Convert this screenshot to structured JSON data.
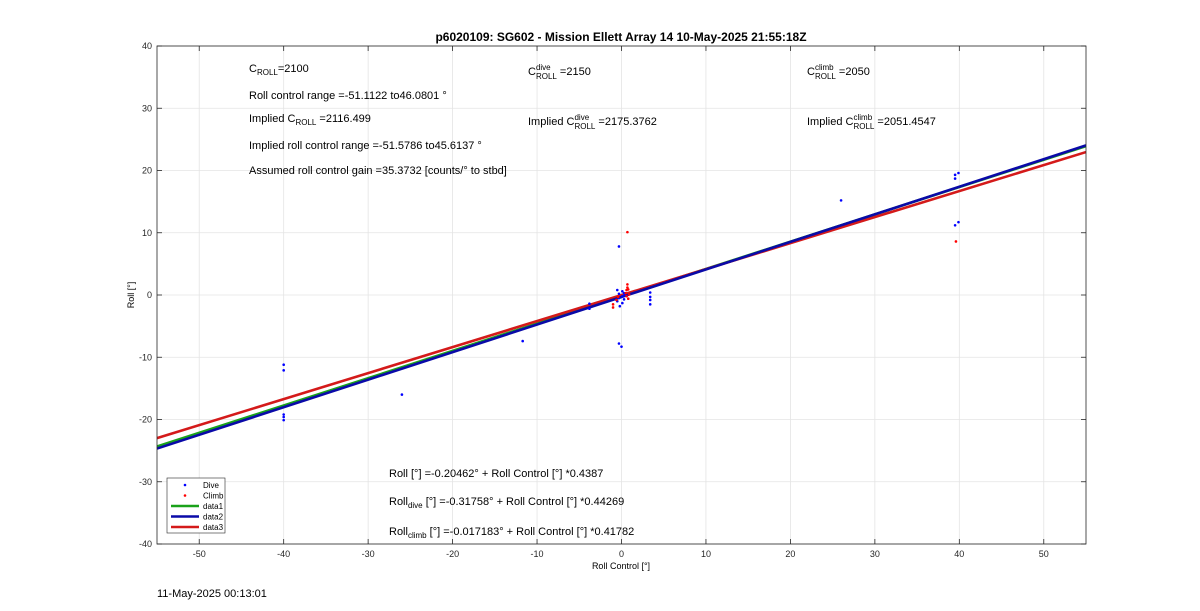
{
  "chart_data": {
    "type": "scatter",
    "title": "p6020109: SG602 - Mission Ellett Array 14 10-May-2025 21:55:18Z",
    "xlabel": "Roll Control [°]",
    "ylabel": "Roll [°]",
    "xlim": [
      -55,
      55
    ],
    "ylim": [
      -40,
      40
    ],
    "xticks": [
      -50,
      -40,
      -30,
      -20,
      -10,
      0,
      10,
      20,
      30,
      40,
      50
    ],
    "yticks": [
      -40,
      -30,
      -20,
      -10,
      0,
      10,
      20,
      30,
      40
    ],
    "grid": true,
    "legend_location": "bottom-left",
    "series": [
      {
        "name": "Dive",
        "kind": "points",
        "color": "#0000ff",
        "points": [
          [
            -40,
            -11.2
          ],
          [
            -40,
            -12.1
          ],
          [
            -40,
            -19.2
          ],
          [
            -40,
            -19.6
          ],
          [
            -40,
            -20.1
          ],
          [
            -26,
            -16.0
          ],
          [
            -11.7,
            -7.4
          ],
          [
            -3.8,
            -1.4
          ],
          [
            -3.8,
            -2.2
          ],
          [
            -0.5,
            0.8
          ],
          [
            -0.5,
            -1.0
          ],
          [
            -0.3,
            0.2
          ],
          [
            -0.3,
            -0.5
          ],
          [
            -0.2,
            -1.8
          ],
          [
            0.1,
            0.6
          ],
          [
            0.1,
            -0.2
          ],
          [
            0.1,
            -1.3
          ],
          [
            0.3,
            0.3
          ],
          [
            0.3,
            -0.7
          ],
          [
            0.4,
            0.0
          ],
          [
            -0.3,
            7.8
          ],
          [
            -0.3,
            -7.8
          ],
          [
            0,
            -8.3
          ],
          [
            3.4,
            0.4
          ],
          [
            3.4,
            -0.3
          ],
          [
            3.4,
            -0.8
          ],
          [
            3.4,
            -1.5
          ],
          [
            26,
            15.2
          ],
          [
            39.5,
            19.3
          ],
          [
            39.5,
            18.7
          ],
          [
            39.9,
            19.6
          ],
          [
            39.5,
            11.2
          ],
          [
            39.9,
            11.7
          ]
        ]
      },
      {
        "name": "Climb",
        "kind": "points",
        "color": "#ff0000",
        "points": [
          [
            -1,
            -1.5
          ],
          [
            -1,
            -2.0
          ],
          [
            -0.6,
            -0.8
          ],
          [
            -0.4,
            -0.3
          ],
          [
            0.5,
            0.3
          ],
          [
            0.6,
            0.8
          ],
          [
            0.7,
            1.2
          ],
          [
            0.7,
            1.7
          ],
          [
            0.8,
            0.9
          ],
          [
            0.8,
            -0.6
          ],
          [
            0.9,
            0.1
          ],
          [
            0.6,
            -0.2
          ],
          [
            0.7,
            10.1
          ],
          [
            39.6,
            8.6
          ]
        ]
      },
      {
        "name": "data1",
        "kind": "line",
        "color": "#1aa21a",
        "x": [
          -55,
          55
        ],
        "y": [
          -24.33,
          23.92
        ]
      },
      {
        "name": "data2",
        "kind": "line",
        "color": "#0a0aa8",
        "x": [
          -55,
          55
        ],
        "y": [
          -24.67,
          24.03
        ]
      },
      {
        "name": "data3",
        "kind": "line",
        "color": "#d41a1a",
        "x": [
          -55,
          55
        ],
        "y": [
          -22.99,
          22.96
        ]
      }
    ]
  },
  "annotations": {
    "c_roll": {
      "prefix": "C",
      "sub": "ROLL",
      "value": "=2100"
    },
    "c_roll_dive": {
      "prefix": "C",
      "sub": "ROLL",
      "sup": "dive",
      "value": " =2150"
    },
    "c_roll_climb": {
      "prefix": "C",
      "sub": "ROLL",
      "sup": "climb",
      "value": " =2050"
    },
    "range": "Roll control range =-51.1122 to46.0801 °",
    "implied_c_roll": {
      "prefix": "Implied C",
      "sub": "ROLL",
      "value": " =2116.499"
    },
    "implied_c_roll_dive": {
      "prefix": "Implied C",
      "sub": "ROLL",
      "sup": "dive",
      "value": " =2175.3762"
    },
    "implied_c_roll_climb": {
      "prefix": "Implied C",
      "sub": "ROLL",
      "sup": "climb",
      "value": " =2051.4547"
    },
    "implied_range": "Implied roll control range =-51.5786 to45.6137 °",
    "gain": "Assumed roll control gain =35.3732 [counts/° to stbd]",
    "fit_all": "Roll [°] =-0.20462° + Roll Control [°] *0.4387",
    "fit_dive": {
      "prefix": "Roll",
      "sub": "dive",
      "value": " [°] =-0.31758° + Roll Control [°] *0.44269"
    },
    "fit_climb": {
      "prefix": "Roll",
      "sub": "climb",
      "value": " [°] =-0.017183° + Roll Control [°] *0.41782"
    }
  },
  "timestamp": "11-May-2025 00:13:01"
}
